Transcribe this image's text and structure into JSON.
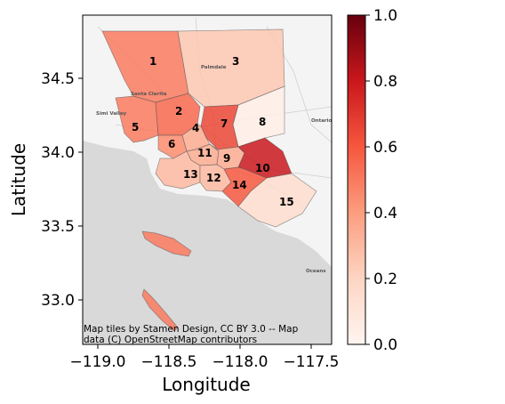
{
  "chart_data": {
    "type": "choropleth",
    "title": "",
    "xlabel": "Longitude",
    "ylabel": "Latitude",
    "xlim": [
      -119.1,
      -117.35
    ],
    "ylim": [
      32.7,
      34.93
    ],
    "x_ticks": [
      "−119.0",
      "−118.5",
      "−118.0",
      "−117.5"
    ],
    "y_ticks": [
      "33.0",
      "33.5",
      "34.0",
      "34.5"
    ],
    "colorbar": {
      "colormap": "Reds",
      "range": [
        0.0,
        1.0
      ],
      "ticks": [
        "0.0",
        "0.2",
        "0.4",
        "0.6",
        "0.8",
        "1.0"
      ]
    },
    "regions": [
      {
        "id": "1",
        "label": "1",
        "value": 0.5
      },
      {
        "id": "2",
        "label": "2",
        "value": 0.55
      },
      {
        "id": "3",
        "label": "3",
        "value": 0.25
      },
      {
        "id": "4",
        "label": "4",
        "value": 0.35
      },
      {
        "id": "5",
        "label": "5",
        "value": 0.5
      },
      {
        "id": "6",
        "label": "6",
        "value": 0.45
      },
      {
        "id": "7",
        "label": "7",
        "value": 0.65
      },
      {
        "id": "8",
        "label": "8",
        "value": 0.05
      },
      {
        "id": "9",
        "label": "9",
        "value": 0.35
      },
      {
        "id": "10",
        "label": "10",
        "value": 0.8
      },
      {
        "id": "11",
        "label": "11",
        "value": 0.35
      },
      {
        "id": "12",
        "label": "12",
        "value": 0.3
      },
      {
        "id": "13",
        "label": "13",
        "value": 0.3
      },
      {
        "id": "14",
        "label": "14",
        "value": 0.6
      },
      {
        "id": "15",
        "label": "15",
        "value": 0.15
      }
    ],
    "colors": {
      "background_land": "#f2f2f2",
      "ocean": "#d9d9d9"
    }
  },
  "basemap": {
    "attribution_line1": "Map tiles by Stamen Design, CC BY 3.0 -- Map",
    "attribution_line2": "data (C) OpenStreetMap contributors",
    "place_names": [
      "Simi Valley",
      "Santa Clarita",
      "Palmdale",
      "Ontario",
      "Oceans"
    ]
  }
}
